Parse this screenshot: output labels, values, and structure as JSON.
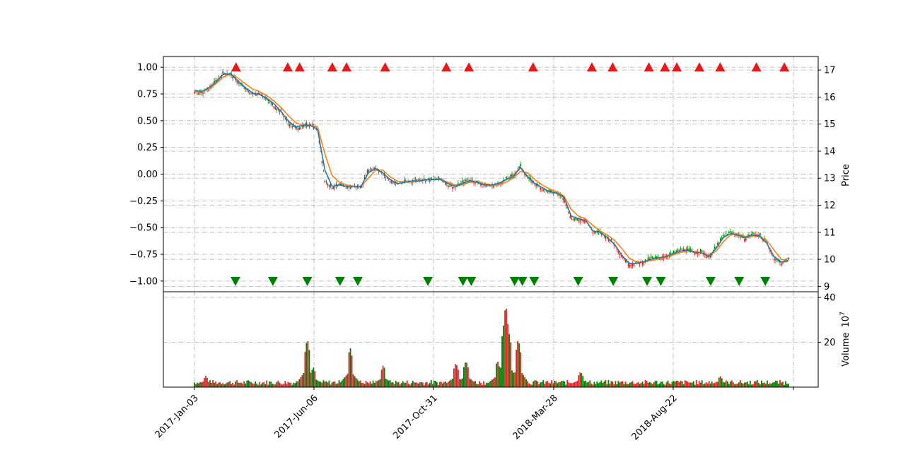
{
  "chart_data": [
    {
      "type": "candlestick",
      "panel": "price",
      "xlabel": "",
      "ylabel_right": "Price",
      "x_tick_labels": [
        "2017-Jan-03",
        "2017-Jun-06",
        "2017-Oct-31",
        "2018-Mar-28",
        "2018-Aug-22"
      ],
      "y_left_ticks": [
        "1.00",
        "0.75",
        "0.50",
        "0.25",
        "0.00",
        "−0.25",
        "−0.50",
        "−0.75",
        "−1.00"
      ],
      "y_left_lim": [
        -1.1,
        1.1
      ],
      "y_right_ticks": [
        "17",
        "16",
        "15",
        "14",
        "13",
        "12",
        "11",
        "10",
        "9"
      ],
      "y_right_lim": [
        8.8,
        17.5
      ],
      "grid": true,
      "colors": {
        "up": "#d62728",
        "down": "#008000",
        "ma_short": "#1f77b4",
        "ma_long": "#ff7f0e",
        "buy_marker": "#e41a1c",
        "sell_marker": "#008000"
      },
      "close_series": {
        "name": "",
        "values": [
          16.2,
          16.15,
          16.3,
          16.6,
          16.9,
          16.85,
          16.55,
          16.3,
          16.1,
          16.15,
          15.9,
          15.65,
          15.45,
          15.0,
          14.85,
          14.9,
          15.0,
          14.8,
          12.9,
          12.65,
          12.75,
          12.65,
          12.7,
          12.65,
          13.3,
          13.4,
          13.15,
          12.9,
          12.8,
          12.85,
          12.9,
          12.95,
          12.95,
          12.95,
          13.0,
          12.75,
          12.65,
          12.85,
          12.95,
          12.85,
          12.75,
          12.7,
          12.8,
          12.95,
          13.1,
          13.45,
          13.0,
          12.8,
          12.6,
          12.5,
          12.45,
          12.25,
          11.5,
          11.45,
          11.45,
          11.0,
          11.0,
          10.8,
          10.55,
          10.1,
          9.8,
          9.85,
          9.9,
          10.05,
          10.05,
          10.1,
          10.2,
          10.35,
          10.35,
          10.25,
          10.3,
          10.05,
          10.45,
          10.85,
          11.0,
          10.9,
          10.75,
          10.95,
          10.9,
          10.6,
          10.05,
          9.85,
          10.0
        ]
      },
      "ma_short_series": {
        "name": "",
        "values": [
          16.25,
          16.2,
          16.35,
          16.55,
          16.85,
          16.85,
          16.6,
          16.35,
          16.15,
          16.1,
          15.95,
          15.75,
          15.45,
          15.1,
          14.9,
          14.95,
          14.95,
          14.8,
          13.3,
          12.7,
          12.75,
          12.7,
          12.7,
          12.7,
          13.2,
          13.35,
          13.2,
          12.95,
          12.8,
          12.85,
          12.9,
          12.9,
          12.95,
          12.95,
          12.95,
          12.8,
          12.7,
          12.8,
          12.9,
          12.85,
          12.75,
          12.75,
          12.8,
          12.95,
          13.05,
          13.4,
          13.05,
          12.8,
          12.65,
          12.5,
          12.45,
          12.3,
          11.6,
          11.5,
          11.45,
          11.05,
          11.0,
          10.8,
          10.55,
          10.15,
          9.85,
          9.85,
          9.9,
          10.0,
          10.05,
          10.1,
          10.2,
          10.3,
          10.35,
          10.25,
          10.25,
          10.1,
          10.4,
          10.8,
          10.95,
          10.9,
          10.8,
          10.9,
          10.85,
          10.6,
          10.1,
          9.9,
          9.95
        ]
      },
      "ma_long_series": {
        "name": "",
        "values": [
          16.2,
          16.2,
          16.3,
          16.5,
          16.75,
          16.85,
          16.7,
          16.5,
          16.3,
          16.2,
          16.05,
          15.85,
          15.6,
          15.3,
          15.05,
          14.95,
          14.95,
          14.9,
          13.9,
          13.1,
          12.85,
          12.75,
          12.7,
          12.7,
          13.0,
          13.3,
          13.3,
          13.05,
          12.9,
          12.85,
          12.85,
          12.9,
          12.95,
          12.95,
          12.95,
          12.85,
          12.75,
          12.75,
          12.85,
          12.85,
          12.8,
          12.75,
          12.75,
          12.85,
          13.0,
          13.25,
          13.2,
          12.95,
          12.75,
          12.6,
          12.5,
          12.35,
          11.85,
          11.6,
          11.5,
          11.25,
          11.05,
          10.9,
          10.7,
          10.4,
          10.05,
          9.9,
          9.9,
          9.95,
          10.0,
          10.05,
          10.15,
          10.25,
          10.3,
          10.3,
          10.25,
          10.15,
          10.3,
          10.65,
          10.9,
          10.95,
          10.85,
          10.85,
          10.85,
          10.7,
          10.35,
          10.0,
          9.95
        ]
      },
      "buy_signals": {
        "name": "",
        "x_fraction": [
          0.07,
          0.157,
          0.177,
          0.232,
          0.256,
          0.321,
          0.424,
          0.462,
          0.57,
          0.669,
          0.704,
          0.765,
          0.792,
          0.812,
          0.85,
          0.885,
          0.946,
          0.993
        ]
      },
      "sell_signals": {
        "name": "",
        "x_fraction": [
          0.069,
          0.132,
          0.19,
          0.245,
          0.275,
          0.393,
          0.452,
          0.466,
          0.539,
          0.552,
          0.572,
          0.646,
          0.705,
          0.762,
          0.785,
          0.869,
          0.917,
          0.961
        ]
      }
    },
    {
      "type": "bar",
      "panel": "volume",
      "ylabel_right": "Volume",
      "y_scale_label": "10",
      "y_scale_exponent": "7",
      "y_right_ticks": [
        "40",
        "20"
      ],
      "y_right_lim": [
        0,
        40
      ],
      "grid": true,
      "bar_colors": [
        "#d62728",
        "#008000"
      ],
      "peaks": [
        {
          "x_fraction": 0.019,
          "value": 5
        },
        {
          "x_fraction": 0.19,
          "value": 22
        },
        {
          "x_fraction": 0.2,
          "value": 9
        },
        {
          "x_fraction": 0.262,
          "value": 18
        },
        {
          "x_fraction": 0.318,
          "value": 10
        },
        {
          "x_fraction": 0.44,
          "value": 11
        },
        {
          "x_fraction": 0.457,
          "value": 12
        },
        {
          "x_fraction": 0.51,
          "value": 12
        },
        {
          "x_fraction": 0.524,
          "value": 38
        },
        {
          "x_fraction": 0.52,
          "value": 27
        },
        {
          "x_fraction": 0.53,
          "value": 24
        },
        {
          "x_fraction": 0.545,
          "value": 22
        },
        {
          "x_fraction": 0.65,
          "value": 7
        },
        {
          "x_fraction": 0.885,
          "value": 5
        }
      ]
    }
  ]
}
